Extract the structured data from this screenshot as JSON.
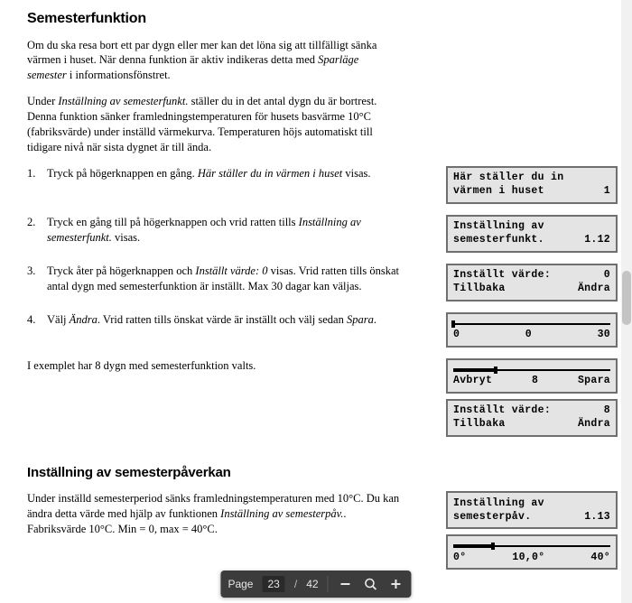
{
  "heading1": "Semesterfunktion",
  "p1a": "Om du ska resa bort ett par dygn eller mer kan det löna sig att tillfälligt sänka värmen i huset. När denna funktion är aktiv indikeras detta med ",
  "p1b": "Sparläge semester",
  "p1c": " i informationsfönstret.",
  "p2a": "Under ",
  "p2b": "Inställning av semesterfunkt.",
  "p2c": " ställer du in det antal dygn du är bortrest. Denna funktion sänker framledningstemperaturen för husets basvärme 10°C (fabriksvärde) under inställd värmekurva. Temperaturen höjs automatiskt till tidigare nivå när sista dygnet är till ända.",
  "s1": {
    "n": "1.",
    "a": "Tryck på högerknappen en gång. ",
    "b": "Här ställer du in värmen i huset",
    "c": " visas."
  },
  "s2": {
    "n": "2.",
    "a": "Tryck en gång till på högerknappen och vrid ratten tills ",
    "b": "Inställning av semesterfunkt.",
    "c": " visas."
  },
  "s3": {
    "n": "3.",
    "a": "Tryck åter på högerknappen och ",
    "b": "Inställt värde: 0",
    "c": " visas. Vrid ratten tills önskat antal dygn med semesterfunktion är inställt. Max 30 dagar kan väljas."
  },
  "s4": {
    "n": "4.",
    "a": "Välj ",
    "b": "Ändra",
    "c": ". Vrid ratten tills önskat värde är inställt och välj sedan ",
    "d": "Spara",
    "e": "."
  },
  "ex": "I exemplet har 8 dygn med semesterfunktion valts.",
  "heading2": "Inställning av semesterpåverkan",
  "p3a": "Under inställd semesterperiod sänks framledningstemperaturen med 10°C. Du kan ändra detta värde med hjälp av funktionen ",
  "p3b": "Inställning av semesterpåv.",
  "p3c": ". Fabriksvärde 10°C. Min = 0, max = 40°C.",
  "lcd": {
    "row1": {
      "l1": "Här ställer du in",
      "l2a": "värmen i huset",
      "l2b": "1"
    },
    "row2": {
      "l1": "Inställning av",
      "l2a": "semesterfunkt.",
      "l2b": "1.12"
    },
    "row3": {
      "l1a": "Inställt värde:",
      "l1b": "0",
      "l2a": "Tillbaka",
      "l2b": "Ändra"
    },
    "row4a": {
      "min": "0",
      "val": "0",
      "max": "30",
      "fill_pct": 0,
      "head_pct": 0
    },
    "row4b": {
      "left": "Avbryt",
      "val": "8",
      "right": "Spara",
      "fill_pct": 27,
      "head_pct": 27
    },
    "row4c": {
      "l1a": "Inställt värde:",
      "l1b": "8",
      "l2a": "Tillbaka",
      "l2b": "Ändra"
    },
    "row5a": {
      "l1": "Inställning av",
      "l2a": "semesterpåv.",
      "l2b": "1.13"
    },
    "row5b": {
      "min": "0°",
      "val": "10,0°",
      "max": "40°",
      "fill_pct": 25,
      "head_pct": 25
    }
  },
  "toolbar": {
    "page_label": "Page",
    "cur": "23",
    "slash": "/",
    "total": "42"
  }
}
